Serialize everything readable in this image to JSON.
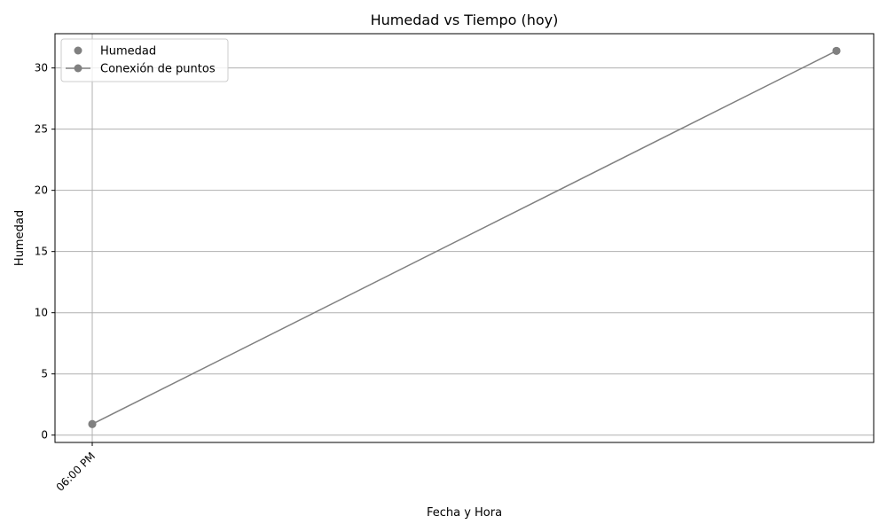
{
  "chart_data": {
    "type": "line",
    "title": "Humedad vs Tiempo (hoy)",
    "xlabel": "Fecha y Hora",
    "ylabel": "Humedad",
    "x_tick_labels": [
      "06:00 PM"
    ],
    "x": [
      "06:00 PM",
      ""
    ],
    "y_ticks": [
      0,
      5,
      10,
      15,
      20,
      25,
      30
    ],
    "ylim": [
      -0.6,
      32.8
    ],
    "grid": true,
    "legend_position": "top-left",
    "series": [
      {
        "name": "Humedad",
        "kind": "scatter",
        "values": [
          0.9,
          31.4
        ],
        "color": "#808080"
      },
      {
        "name": "Conexión de puntos",
        "kind": "line",
        "values": [
          0.9,
          31.4
        ],
        "color": "#808080"
      }
    ]
  }
}
